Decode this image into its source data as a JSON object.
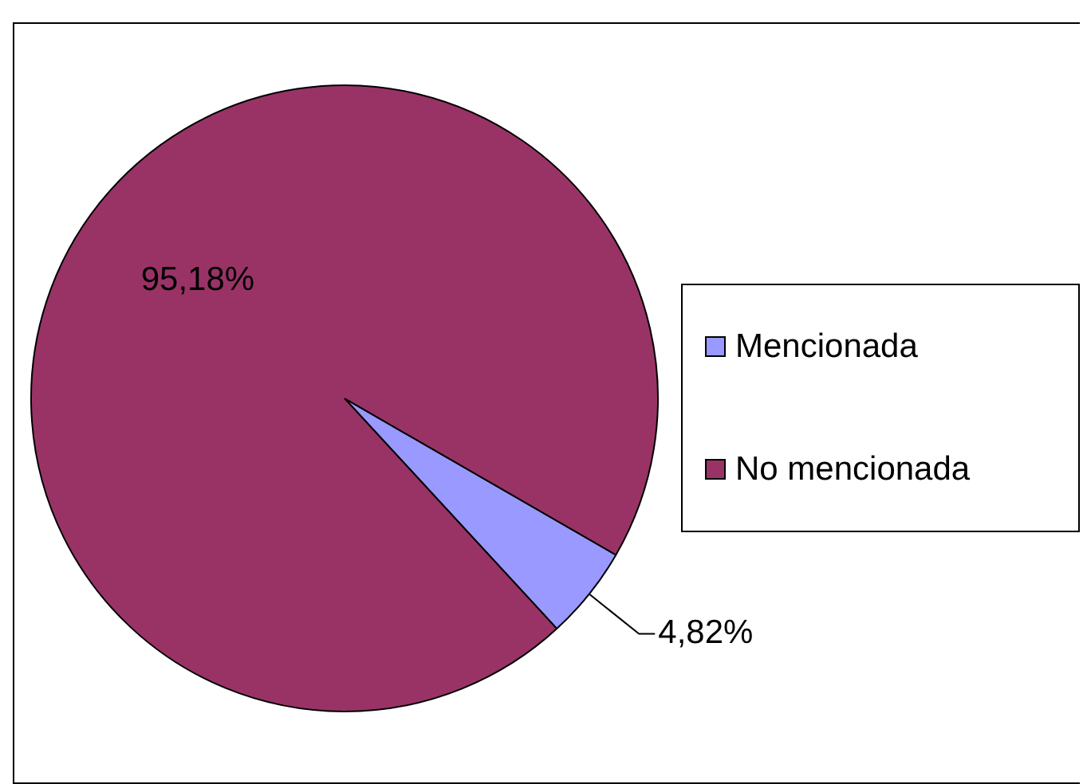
{
  "chart_data": {
    "type": "pie",
    "categories": [
      "Mencionada",
      "No mencionada"
    ],
    "values": [
      4.82,
      95.18
    ],
    "colors": [
      "#9999ff",
      "#993366"
    ],
    "value_labels": [
      "4,82%",
      "95,18%"
    ],
    "legend": "right"
  }
}
